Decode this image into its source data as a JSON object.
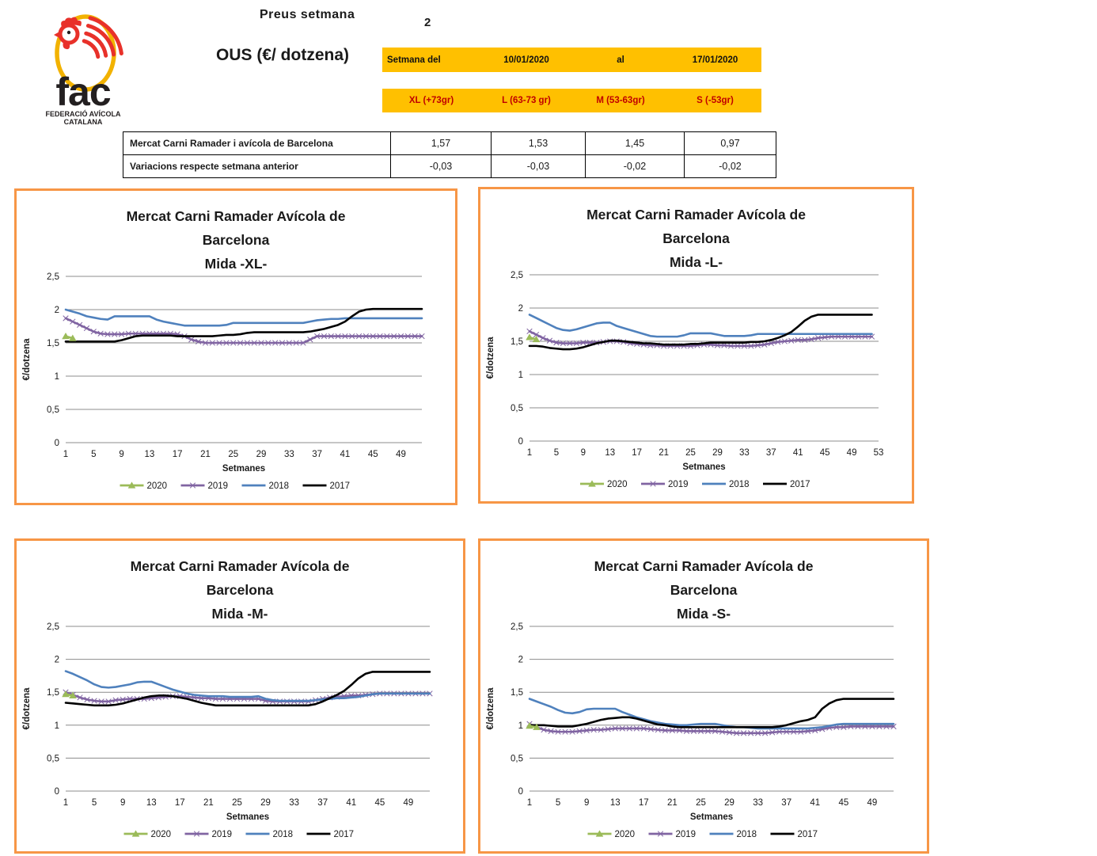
{
  "header": {
    "preus_label": "Preus setmana",
    "week_number": "2",
    "product_title": "OUS (€/ dotzena)",
    "logo": {
      "wordmark": "fac",
      "subtitle1": "FEDERACIÓ AVÍCOLA",
      "subtitle2": "CATALANA"
    },
    "week_band": {
      "label": "Setmana del",
      "date_from": "10/01/2020",
      "al_label": "al",
      "date_to": "17/01/2020"
    },
    "size_band": [
      "XL (+73gr)",
      "L (63-73  gr)",
      "M (53-63gr)",
      "S (-53gr)"
    ]
  },
  "price_table": {
    "rows": [
      {
        "label": "Mercat Carni Ramader i avícola de Barcelona",
        "values": [
          "1,57",
          "1,53",
          "1,45",
          "0,97"
        ]
      },
      {
        "label": "Variacions respecte setmana anterior",
        "values": [
          "-0,03",
          "-0,03",
          "-0,02",
          "-0,02"
        ]
      }
    ]
  },
  "colors": {
    "band_yellow": "#FFC000",
    "band_red_text": "#C00000",
    "chart_border": "#F79646",
    "series_2020": "#9BBB59",
    "series_2019": "#8064A2",
    "series_2018": "#4F81BD",
    "series_2017": "#000000",
    "gridline": "#8C8C8C"
  },
  "chart_data": [
    {
      "type": "line",
      "title_lines": [
        "Mercat Carni Ramader Avícola de",
        "Barcelona",
        "Mida -XL-"
      ],
      "ylabel": "€/dotzena",
      "xlabel": "Setmanes",
      "ylim": [
        0,
        2.5
      ],
      "grid": true,
      "legend_position": "bottom",
      "ytick_values": [
        0,
        0.5,
        1,
        1.5,
        2,
        2.5
      ],
      "ytick_labels": [
        "0",
        "0,5",
        "1",
        "1,5",
        "2",
        "2,5"
      ],
      "xticks": [
        1,
        5,
        9,
        13,
        17,
        21,
        25,
        29,
        33,
        37,
        41,
        45,
        49
      ],
      "xmax": 52,
      "x_start": 1,
      "x_step": 1,
      "series": [
        {
          "name": "2020",
          "color": "#9BBB59",
          "marker": "triangle",
          "values": [
            1.6,
            1.57
          ]
        },
        {
          "name": "2019",
          "color": "#8064A2",
          "marker": "x",
          "values": [
            1.87,
            1.82,
            1.77,
            1.72,
            1.67,
            1.64,
            1.63,
            1.63,
            1.63,
            1.64,
            1.64,
            1.64,
            1.64,
            1.64,
            1.64,
            1.64,
            1.63,
            1.6,
            1.55,
            1.52,
            1.5,
            1.5,
            1.5,
            1.5,
            1.5,
            1.5,
            1.5,
            1.5,
            1.5,
            1.5,
            1.5,
            1.5,
            1.5,
            1.5,
            1.5,
            1.55,
            1.6,
            1.6,
            1.6,
            1.6,
            1.6,
            1.6,
            1.6,
            1.6,
            1.6,
            1.6,
            1.6,
            1.6,
            1.6,
            1.6,
            1.6,
            1.6
          ]
        },
        {
          "name": "2018",
          "color": "#4F81BD",
          "marker": "none",
          "values": [
            2.0,
            1.97,
            1.94,
            1.9,
            1.88,
            1.86,
            1.85,
            1.9,
            1.9,
            1.9,
            1.9,
            1.9,
            1.9,
            1.85,
            1.82,
            1.8,
            1.78,
            1.76,
            1.76,
            1.76,
            1.76,
            1.76,
            1.76,
            1.77,
            1.8,
            1.8,
            1.8,
            1.8,
            1.8,
            1.8,
            1.8,
            1.8,
            1.8,
            1.8,
            1.8,
            1.82,
            1.84,
            1.85,
            1.86,
            1.86,
            1.87,
            1.87,
            1.87,
            1.87,
            1.87,
            1.87,
            1.87,
            1.87,
            1.87,
            1.87,
            1.87,
            1.87
          ]
        },
        {
          "name": "2017",
          "color": "#000000",
          "marker": "none",
          "values": [
            1.52,
            1.52,
            1.52,
            1.52,
            1.52,
            1.52,
            1.52,
            1.52,
            1.54,
            1.57,
            1.6,
            1.61,
            1.61,
            1.61,
            1.61,
            1.61,
            1.6,
            1.6,
            1.6,
            1.6,
            1.6,
            1.6,
            1.61,
            1.62,
            1.62,
            1.63,
            1.65,
            1.66,
            1.66,
            1.66,
            1.66,
            1.66,
            1.66,
            1.66,
            1.66,
            1.67,
            1.69,
            1.71,
            1.74,
            1.77,
            1.82,
            1.9,
            1.97,
            2.0,
            2.01,
            2.01,
            2.01,
            2.01,
            2.01,
            2.01,
            2.01,
            2.01
          ]
        }
      ]
    },
    {
      "type": "line",
      "title_lines": [
        "Mercat Carni Ramader Avícola de",
        "Barcelona",
        "Mida -L-"
      ],
      "ylabel": "€/dotzena",
      "xlabel": "Setmanes",
      "ylim": [
        0,
        2.5
      ],
      "grid": true,
      "legend_position": "bottom",
      "ytick_values": [
        0,
        0.5,
        1,
        1.5,
        2,
        2.5
      ],
      "ytick_labels": [
        "0",
        "0,5",
        "1",
        "1,5",
        "2",
        "2,5"
      ],
      "xticks": [
        1,
        5,
        9,
        13,
        17,
        21,
        25,
        29,
        33,
        37,
        41,
        45,
        49,
        53
      ],
      "xmax": 53,
      "x_start": 1,
      "x_step": 1,
      "series": [
        {
          "name": "2020",
          "color": "#9BBB59",
          "marker": "triangle",
          "values": [
            1.56,
            1.53
          ]
        },
        {
          "name": "2019",
          "color": "#8064A2",
          "marker": "x",
          "values": [
            1.65,
            1.6,
            1.55,
            1.51,
            1.48,
            1.47,
            1.47,
            1.47,
            1.48,
            1.48,
            1.48,
            1.49,
            1.5,
            1.5,
            1.49,
            1.47,
            1.46,
            1.45,
            1.44,
            1.44,
            1.43,
            1.43,
            1.43,
            1.43,
            1.43,
            1.44,
            1.45,
            1.45,
            1.44,
            1.44,
            1.43,
            1.43,
            1.43,
            1.43,
            1.44,
            1.45,
            1.47,
            1.49,
            1.5,
            1.51,
            1.52,
            1.52,
            1.53,
            1.55,
            1.56,
            1.57,
            1.57,
            1.57,
            1.57,
            1.57,
            1.57,
            1.57
          ]
        },
        {
          "name": "2018",
          "color": "#4F81BD",
          "marker": "none",
          "values": [
            1.9,
            1.85,
            1.8,
            1.75,
            1.7,
            1.67,
            1.66,
            1.68,
            1.71,
            1.74,
            1.77,
            1.78,
            1.78,
            1.73,
            1.7,
            1.67,
            1.64,
            1.61,
            1.58,
            1.57,
            1.57,
            1.57,
            1.57,
            1.59,
            1.62,
            1.62,
            1.62,
            1.62,
            1.6,
            1.58,
            1.58,
            1.58,
            1.58,
            1.59,
            1.61,
            1.61,
            1.61,
            1.61,
            1.61,
            1.61,
            1.61,
            1.61,
            1.61,
            1.61,
            1.61,
            1.61,
            1.61,
            1.61,
            1.61,
            1.61,
            1.61,
            1.61
          ]
        },
        {
          "name": "2017",
          "color": "#000000",
          "marker": "none",
          "values": [
            1.43,
            1.43,
            1.42,
            1.4,
            1.39,
            1.38,
            1.38,
            1.39,
            1.41,
            1.44,
            1.47,
            1.49,
            1.51,
            1.51,
            1.5,
            1.49,
            1.48,
            1.47,
            1.47,
            1.46,
            1.45,
            1.45,
            1.45,
            1.45,
            1.46,
            1.46,
            1.47,
            1.48,
            1.48,
            1.48,
            1.48,
            1.48,
            1.48,
            1.49,
            1.49,
            1.5,
            1.52,
            1.55,
            1.59,
            1.64,
            1.72,
            1.81,
            1.87,
            1.9,
            1.9,
            1.9,
            1.9,
            1.9,
            1.9,
            1.9,
            1.9,
            1.9
          ]
        }
      ]
    },
    {
      "type": "line",
      "title_lines": [
        "Mercat Carni Ramader Avícola de",
        "Barcelona",
        "Mida -M-"
      ],
      "ylabel": "€/dotzena",
      "xlabel": "Setmanes",
      "ylim": [
        0,
        2.5
      ],
      "grid": true,
      "legend_position": "bottom",
      "ytick_values": [
        0,
        0.5,
        1,
        1.5,
        2,
        2.5
      ],
      "ytick_labels": [
        "0",
        "0,5",
        "1",
        "1,5",
        "2",
        "2,5"
      ],
      "xticks": [
        1,
        5,
        9,
        13,
        17,
        21,
        25,
        29,
        33,
        37,
        41,
        45,
        49
      ],
      "xmax": 52,
      "x_start": 1,
      "x_step": 1,
      "series": [
        {
          "name": "2020",
          "color": "#9BBB59",
          "marker": "triangle",
          "values": [
            1.47,
            1.45
          ]
        },
        {
          "name": "2019",
          "color": "#8064A2",
          "marker": "x",
          "values": [
            1.5,
            1.46,
            1.42,
            1.39,
            1.37,
            1.36,
            1.36,
            1.38,
            1.39,
            1.4,
            1.4,
            1.4,
            1.41,
            1.42,
            1.43,
            1.44,
            1.44,
            1.43,
            1.42,
            1.41,
            1.41,
            1.4,
            1.4,
            1.4,
            1.4,
            1.4,
            1.4,
            1.4,
            1.37,
            1.36,
            1.36,
            1.36,
            1.36,
            1.36,
            1.36,
            1.38,
            1.4,
            1.42,
            1.43,
            1.44,
            1.45,
            1.45,
            1.46,
            1.47,
            1.48,
            1.48,
            1.48,
            1.48,
            1.48,
            1.48,
            1.48,
            1.48
          ]
        },
        {
          "name": "2018",
          "color": "#4F81BD",
          "marker": "none",
          "values": [
            1.82,
            1.78,
            1.73,
            1.68,
            1.62,
            1.58,
            1.57,
            1.58,
            1.6,
            1.62,
            1.65,
            1.66,
            1.66,
            1.62,
            1.58,
            1.54,
            1.51,
            1.48,
            1.46,
            1.45,
            1.44,
            1.44,
            1.44,
            1.43,
            1.43,
            1.43,
            1.43,
            1.44,
            1.4,
            1.38,
            1.37,
            1.37,
            1.37,
            1.37,
            1.37,
            1.38,
            1.39,
            1.4,
            1.41,
            1.41,
            1.42,
            1.43,
            1.45,
            1.47,
            1.48,
            1.48,
            1.48,
            1.48,
            1.48,
            1.48,
            1.48,
            1.48
          ]
        },
        {
          "name": "2017",
          "color": "#000000",
          "marker": "none",
          "values": [
            1.34,
            1.33,
            1.32,
            1.31,
            1.3,
            1.3,
            1.3,
            1.31,
            1.33,
            1.36,
            1.39,
            1.42,
            1.44,
            1.45,
            1.45,
            1.44,
            1.42,
            1.4,
            1.37,
            1.34,
            1.32,
            1.3,
            1.3,
            1.3,
            1.3,
            1.3,
            1.3,
            1.3,
            1.3,
            1.3,
            1.3,
            1.3,
            1.3,
            1.3,
            1.3,
            1.32,
            1.36,
            1.41,
            1.46,
            1.52,
            1.61,
            1.71,
            1.78,
            1.81,
            1.81,
            1.81,
            1.81,
            1.81,
            1.81,
            1.81,
            1.81,
            1.81
          ]
        }
      ]
    },
    {
      "type": "line",
      "title_lines": [
        "Mercat Carni Ramader Avícola de",
        "Barcelona",
        "Mida -S-"
      ],
      "ylabel": "€/dotzena",
      "xlabel": "Setmanes",
      "ylim": [
        0,
        2.5
      ],
      "grid": true,
      "legend_position": "bottom",
      "ytick_values": [
        0,
        0.5,
        1,
        1.5,
        2,
        2.5
      ],
      "ytick_labels": [
        "0",
        "0,5",
        "1",
        "1,5",
        "2",
        "2,5"
      ],
      "xticks": [
        1,
        5,
        9,
        13,
        17,
        21,
        25,
        29,
        33,
        37,
        41,
        45,
        49
      ],
      "xmax": 52,
      "x_start": 1,
      "x_step": 1,
      "series": [
        {
          "name": "2020",
          "color": "#9BBB59",
          "marker": "triangle",
          "values": [
            0.99,
            0.97
          ]
        },
        {
          "name": "2019",
          "color": "#8064A2",
          "marker": "x",
          "values": [
            1.02,
            0.97,
            0.93,
            0.91,
            0.9,
            0.9,
            0.9,
            0.91,
            0.92,
            0.93,
            0.93,
            0.94,
            0.95,
            0.95,
            0.95,
            0.95,
            0.95,
            0.94,
            0.93,
            0.92,
            0.92,
            0.92,
            0.91,
            0.91,
            0.91,
            0.91,
            0.91,
            0.9,
            0.89,
            0.88,
            0.88,
            0.88,
            0.88,
            0.88,
            0.89,
            0.9,
            0.9,
            0.9,
            0.9,
            0.91,
            0.92,
            0.94,
            0.96,
            0.97,
            0.97,
            0.98,
            0.98,
            0.98,
            0.98,
            0.98,
            0.98,
            0.98
          ]
        },
        {
          "name": "2018",
          "color": "#4F81BD",
          "marker": "none",
          "values": [
            1.4,
            1.36,
            1.32,
            1.28,
            1.23,
            1.19,
            1.18,
            1.2,
            1.24,
            1.25,
            1.25,
            1.25,
            1.25,
            1.2,
            1.16,
            1.12,
            1.09,
            1.06,
            1.04,
            1.02,
            1.01,
            1.0,
            1.0,
            1.01,
            1.02,
            1.02,
            1.02,
            1.0,
            0.98,
            0.97,
            0.97,
            0.96,
            0.95,
            0.95,
            0.95,
            0.95,
            0.95,
            0.95,
            0.95,
            0.95,
            0.96,
            0.97,
            0.99,
            1.01,
            1.02,
            1.02,
            1.02,
            1.02,
            1.02,
            1.02,
            1.02,
            1.02
          ]
        },
        {
          "name": "2017",
          "color": "#000000",
          "marker": "none",
          "values": [
            1.0,
            1.0,
            1.0,
            0.99,
            0.98,
            0.98,
            0.98,
            1.0,
            1.02,
            1.05,
            1.08,
            1.1,
            1.11,
            1.12,
            1.12,
            1.1,
            1.07,
            1.04,
            1.01,
            1.0,
            0.98,
            0.97,
            0.97,
            0.97,
            0.97,
            0.97,
            0.97,
            0.97,
            0.97,
            0.97,
            0.97,
            0.97,
            0.97,
            0.97,
            0.97,
            0.98,
            1.0,
            1.03,
            1.06,
            1.08,
            1.12,
            1.25,
            1.33,
            1.38,
            1.4,
            1.4,
            1.4,
            1.4,
            1.4,
            1.4,
            1.4,
            1.4
          ]
        }
      ]
    }
  ]
}
